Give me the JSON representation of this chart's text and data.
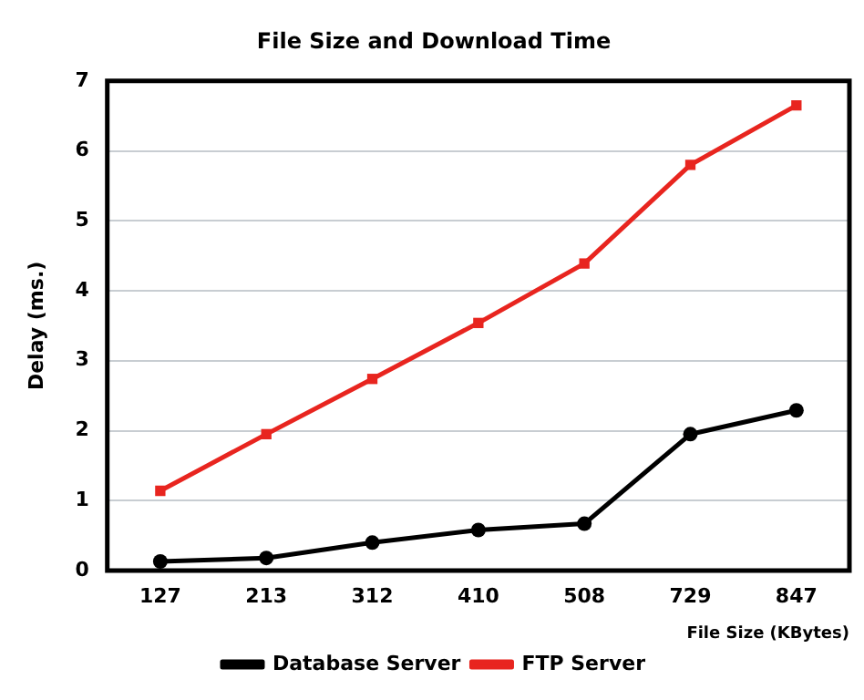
{
  "chart_data": {
    "type": "line",
    "title": "File Size and Download Time",
    "xlabel": "File Size (KBytes)",
    "ylabel": "Delay (ms.)",
    "categories": [
      "127",
      "213",
      "312",
      "410",
      "508",
      "729",
      "847"
    ],
    "series": [
      {
        "name": "Database Server",
        "color": "#000000",
        "marker": "circle",
        "values": [
          0.13,
          0.18,
          0.4,
          0.58,
          0.67,
          1.95,
          2.29
        ]
      },
      {
        "name": "FTP Server",
        "color": "#e8251f",
        "marker": "square",
        "values": [
          1.14,
          1.95,
          2.74,
          3.54,
          4.39,
          5.8,
          6.65
        ]
      }
    ],
    "ylim": [
      0,
      7
    ],
    "yticks": [
      0,
      1,
      2,
      3,
      4,
      5,
      6,
      7
    ],
    "grid": "y",
    "legend": "bottom",
    "line_style": "solid"
  }
}
